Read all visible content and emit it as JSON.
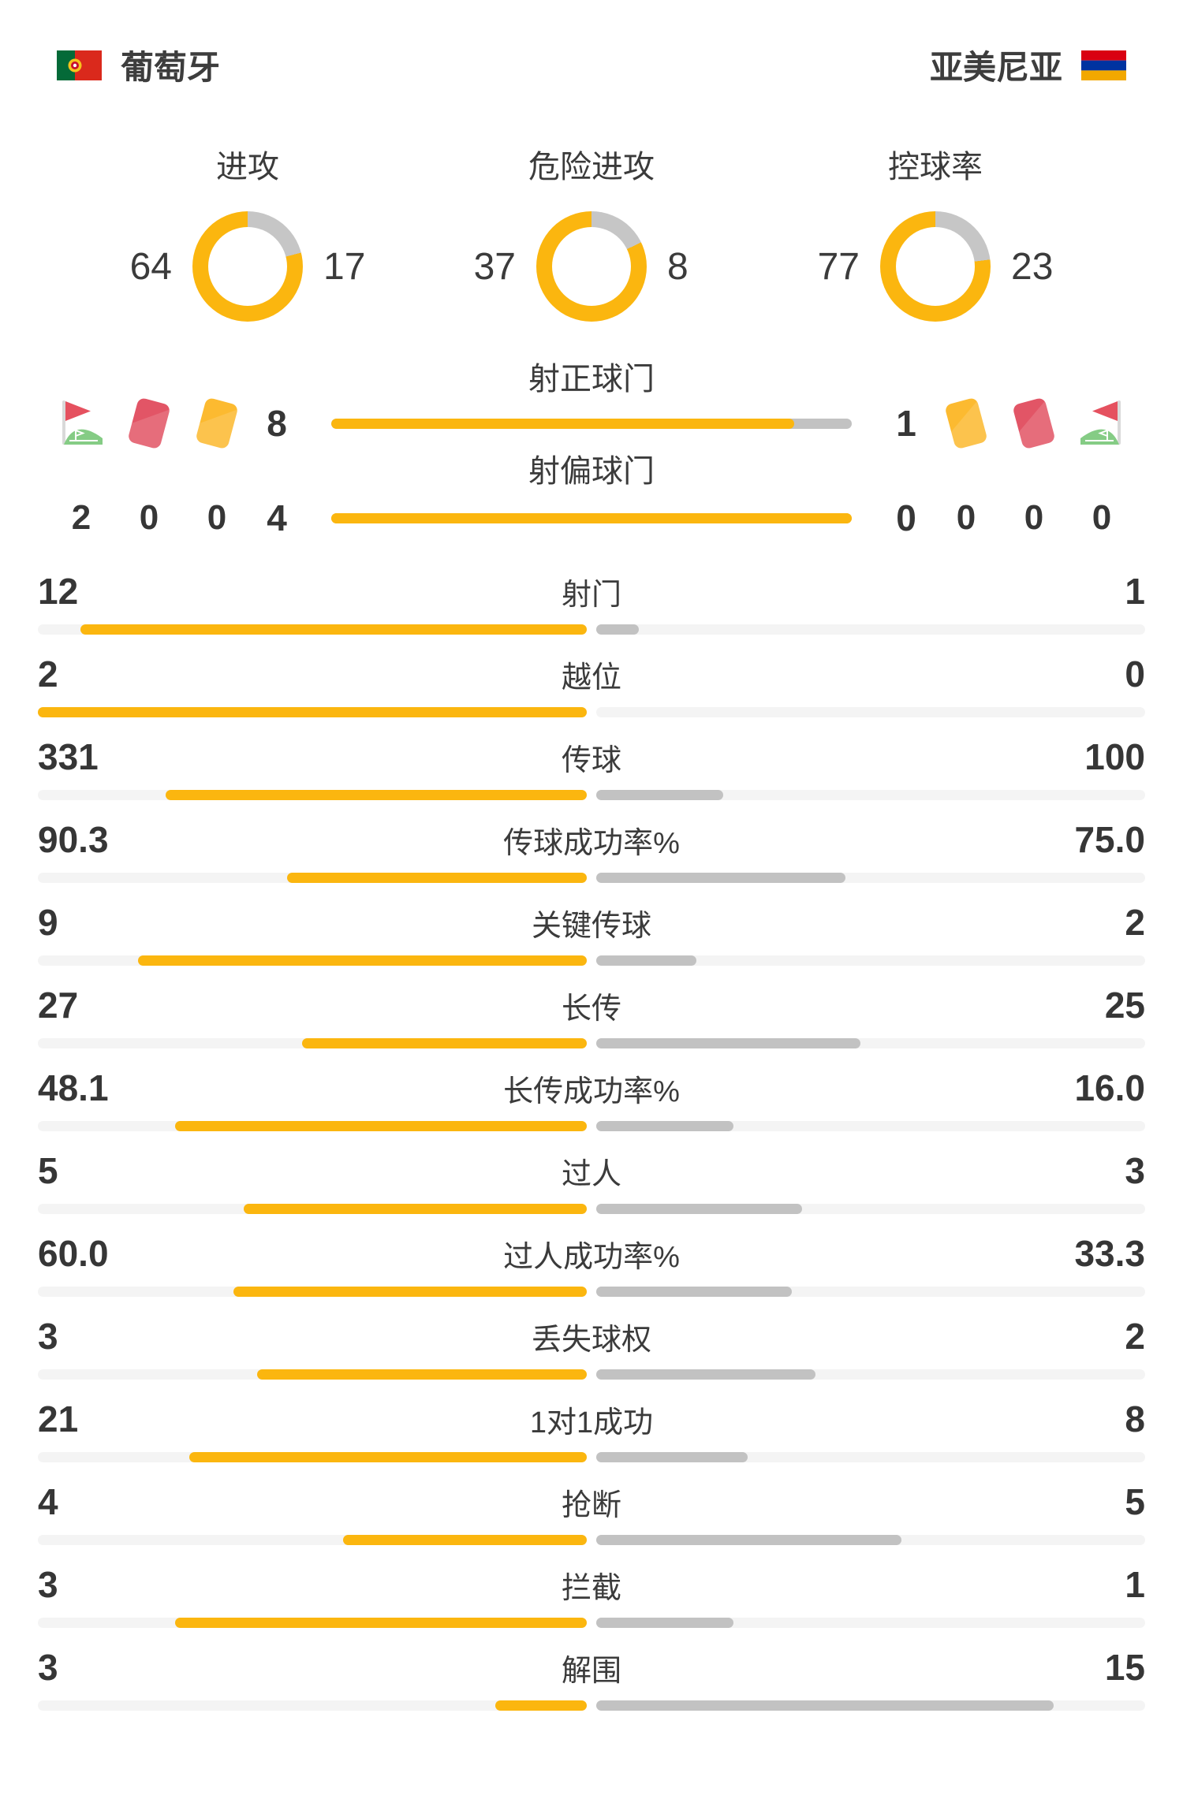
{
  "colors": {
    "accent_yellow": "#fbb60f",
    "away_gray": "#c2c2c2",
    "donut_gray": "#c6c6c6",
    "track_gray": "#f4f4f4",
    "text_dark": "#3b3b3b",
    "card_red": "#e25566",
    "card_yellow": "#fcba30",
    "corner_green": "#85cc85",
    "corner_red": "#e5515f"
  },
  "header": {
    "home_name": "葡萄牙",
    "away_name": "亚美尼亚"
  },
  "donuts": [
    {
      "label": "进攻",
      "home": 64,
      "away": 17
    },
    {
      "label": "危险进攻",
      "home": 37,
      "away": 8
    },
    {
      "label": "控球率",
      "home": 77,
      "away": 23
    }
  ],
  "shots": {
    "rows": [
      {
        "label": "射正球门",
        "home": 8,
        "away": 1
      },
      {
        "label": "射偏球门",
        "home": 4,
        "away": 0
      }
    ],
    "cards": {
      "home": {
        "corner": 2,
        "red": 0,
        "yellow": 0
      },
      "away": {
        "corner": 0,
        "red": 0,
        "yellow": 0
      }
    }
  },
  "stats": [
    {
      "label": "射门",
      "home": "12",
      "away": "1"
    },
    {
      "label": "越位",
      "home": "2",
      "away": "0"
    },
    {
      "label": "传球",
      "home": "331",
      "away": "100"
    },
    {
      "label": "传球成功率%",
      "home": "90.3",
      "away": "75.0"
    },
    {
      "label": "关键传球",
      "home": "9",
      "away": "2"
    },
    {
      "label": "长传",
      "home": "27",
      "away": "25"
    },
    {
      "label": "长传成功率%",
      "home": "48.1",
      "away": "16.0"
    },
    {
      "label": "过人",
      "home": "5",
      "away": "3"
    },
    {
      "label": "过人成功率%",
      "home": "60.0",
      "away": "33.3"
    },
    {
      "label": "丢失球权",
      "home": "3",
      "away": "2"
    },
    {
      "label": "1对1成功",
      "home": "21",
      "away": "8"
    },
    {
      "label": "抢断",
      "home": "4",
      "away": "5"
    },
    {
      "label": "拦截",
      "home": "3",
      "away": "1"
    },
    {
      "label": "解围",
      "home": "3",
      "away": "15"
    }
  ]
}
